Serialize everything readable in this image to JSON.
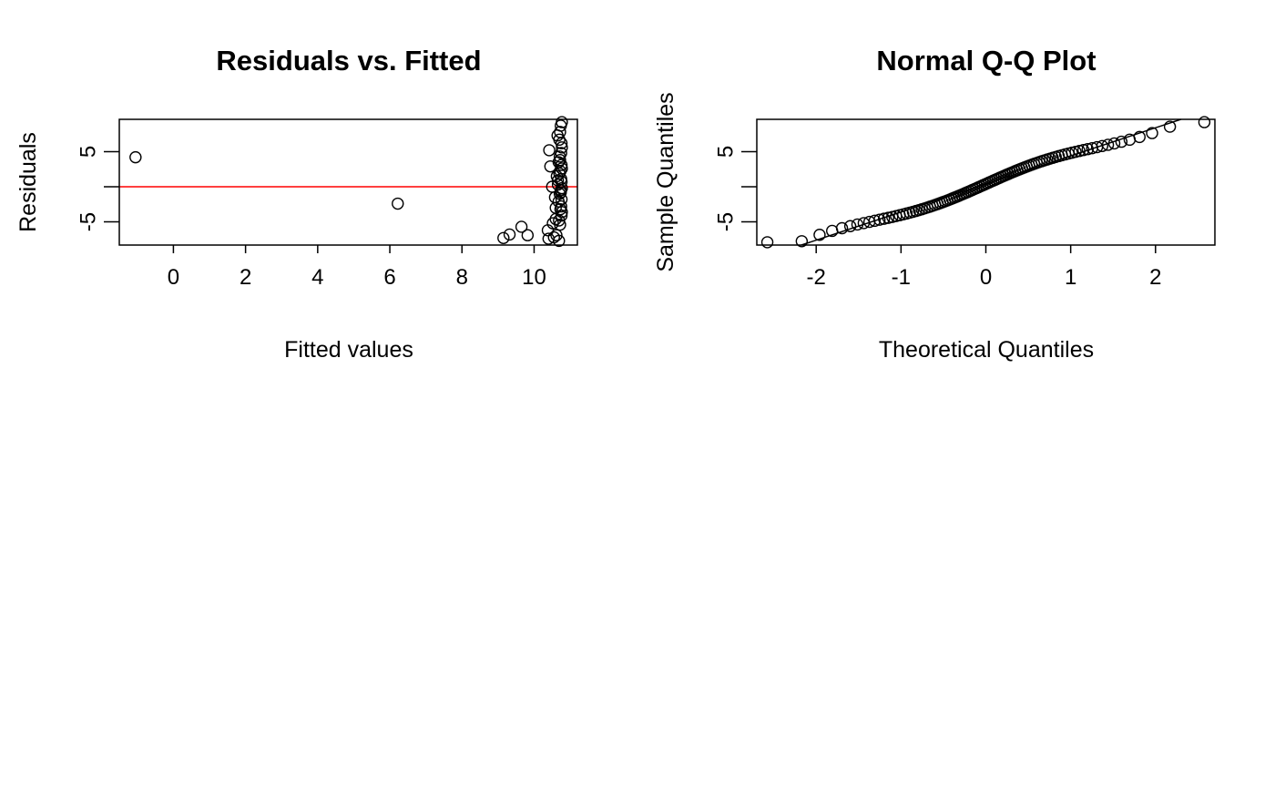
{
  "chart_data": [
    {
      "type": "scatter",
      "title": "Residuals vs. Fitted",
      "xlabel": "Fitted values",
      "ylabel": "Residuals",
      "xlim": [
        -1.5,
        11.2
      ],
      "ylim": [
        -8.3,
        9.6
      ],
      "xticks": [
        0,
        2,
        4,
        6,
        8,
        10
      ],
      "yticks": [
        -5,
        5
      ],
      "yticks_minor": [
        0
      ],
      "reference_line": {
        "type": "horizontal",
        "y": 0,
        "color": "#ff0000"
      },
      "grid": false,
      "legend": "none",
      "point_color": "#000000",
      "x": [
        -1.05,
        6.22,
        9.15,
        9.32,
        9.65,
        9.82,
        10.38,
        10.4,
        10.42,
        10.45,
        10.5,
        10.52,
        10.55,
        10.58,
        10.6,
        10.62,
        10.63,
        10.65,
        10.66,
        10.68,
        10.69,
        10.7,
        10.71,
        10.72,
        10.72,
        10.73,
        10.73,
        10.74,
        10.74,
        10.75,
        10.75,
        10.75,
        10.76,
        10.76,
        10.76,
        10.76,
        10.76,
        10.77,
        10.77,
        10.77,
        10.77,
        10.77,
        10.68,
        10.7,
        10.72,
        10.74,
        10.71,
        10.69,
        10.66,
        10.6
      ],
      "y": [
        4.2,
        -2.4,
        -7.3,
        -6.8,
        -5.7,
        -6.9,
        -6.2,
        -7.4,
        5.2,
        2.9,
        0.0,
        -5.2,
        -7.2,
        -1.5,
        -4.6,
        -6.9,
        1.5,
        7.3,
        0.3,
        -2.1,
        -7.7,
        6.7,
        -1.0,
        -5.4,
        3.8,
        -3.2,
        2.2,
        8.7,
        -0.5,
        4.8,
        1.1,
        -2.8,
        6.2,
        3.1,
        0.7,
        -1.8,
        -4.1,
        9.2,
        5.6,
        2.6,
        -0.2,
        -3.6,
        3.5,
        1.9,
        7.8,
        -0.8,
        4.3,
        -4.8,
        0.9,
        -3.0
      ]
    },
    {
      "type": "scatter",
      "title": "Normal Q-Q Plot",
      "xlabel": "Theoretical Quantiles",
      "ylabel": "Sample Quantiles",
      "xlim": [
        -2.7,
        2.7
      ],
      "ylim": [
        -8.3,
        9.6
      ],
      "xticks": [
        -2,
        -1,
        0,
        1,
        2
      ],
      "yticks": [
        -5,
        5
      ],
      "yticks_minor": [
        0
      ],
      "reference_line": {
        "type": "qqline",
        "intercept": 0.4,
        "slope": 4.0,
        "color": "#000000"
      },
      "grid": false,
      "legend": "none",
      "point_color": "#000000",
      "n_points": 100
    }
  ]
}
